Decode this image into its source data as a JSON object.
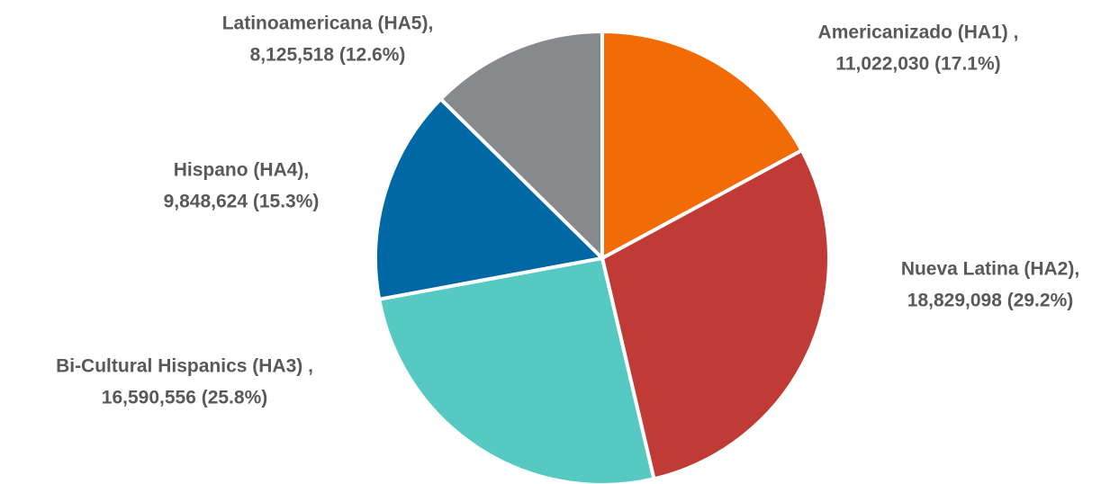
{
  "chart_data": {
    "type": "pie",
    "categories": [
      "Americanizado (HA1) ,",
      "Nueva Latina (HA2),",
      "Bi-Cultural Hispanics (HA3) ,",
      "Hispano (HA4),",
      "Latinoamericana (HA5),"
    ],
    "values": [
      11022030,
      18829098,
      16590556,
      9848624,
      8125518
    ],
    "value_labels": [
      "11,022,030 (17.1%)",
      "18,829,098 (29.2%)",
      "16,590,556 (25.8%)",
      "9,848,624 (15.3%)",
      "8,125,518 (12.6%)"
    ],
    "colors": [
      "#f26b04",
      "#c03a36",
      "#56cac2",
      "#0068a5",
      "#87898c"
    ]
  }
}
